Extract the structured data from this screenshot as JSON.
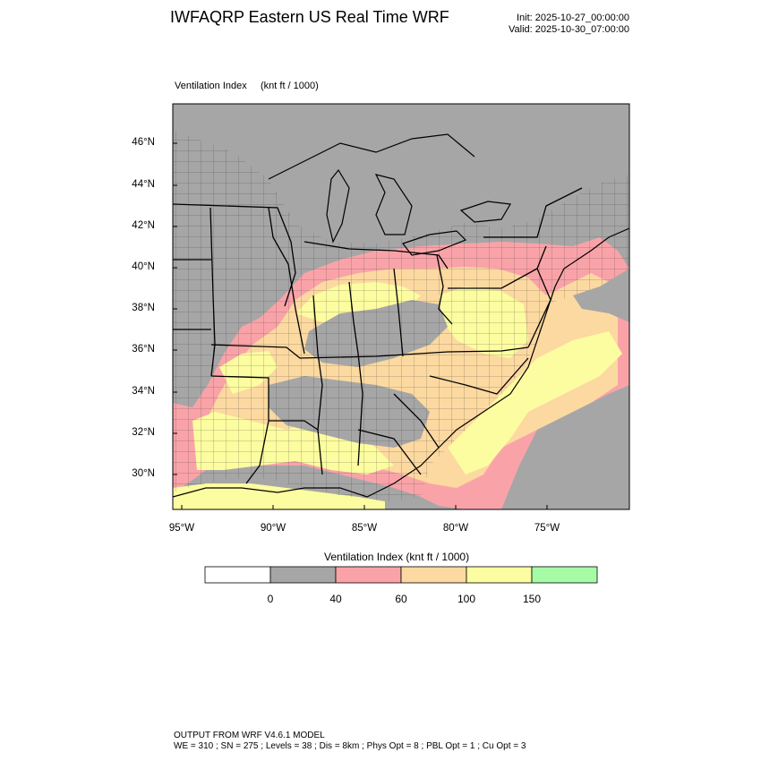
{
  "header": {
    "title": "IWFAQRP Eastern US Real Time WRF",
    "init": "Init: 2025-10-27_00:00:00",
    "valid": "Valid: 2025-10-30_07:00:00"
  },
  "field": {
    "label": "Ventilation Index",
    "units": "(knt ft / 1000)"
  },
  "axes": {
    "lat_labels": [
      "46°N",
      "44°N",
      "42°N",
      "40°N",
      "38°N",
      "36°N",
      "34°N",
      "32°N",
      "30°N"
    ],
    "lon_labels": [
      "95°W",
      "90°W",
      "85°W",
      "80°W",
      "75°W"
    ]
  },
  "colorbar": {
    "title": "Ventilation Index  (knt ft / 1000)",
    "ticks": [
      "0",
      "40",
      "60",
      "100",
      "150"
    ],
    "colors": [
      "#ffffff",
      "#a6a6a6",
      "#f9a3a8",
      "#fcd9a0",
      "#fcfca0",
      "#a6fca6"
    ]
  },
  "map_colors": {
    "background": "#a6a6a6",
    "low": "#f9a3a8",
    "moderate": "#fcd9a0",
    "high": "#fcfca0",
    "border": "#000000"
  },
  "footer": {
    "line1": "OUTPUT FROM WRF V4.6.1 MODEL",
    "line2": "WE = 310 ; SN = 275 ; Levels = 38 ; Dis = 8km ; Phys Opt = 8 ; PBL Opt = 1 ; Cu Opt = 3"
  }
}
